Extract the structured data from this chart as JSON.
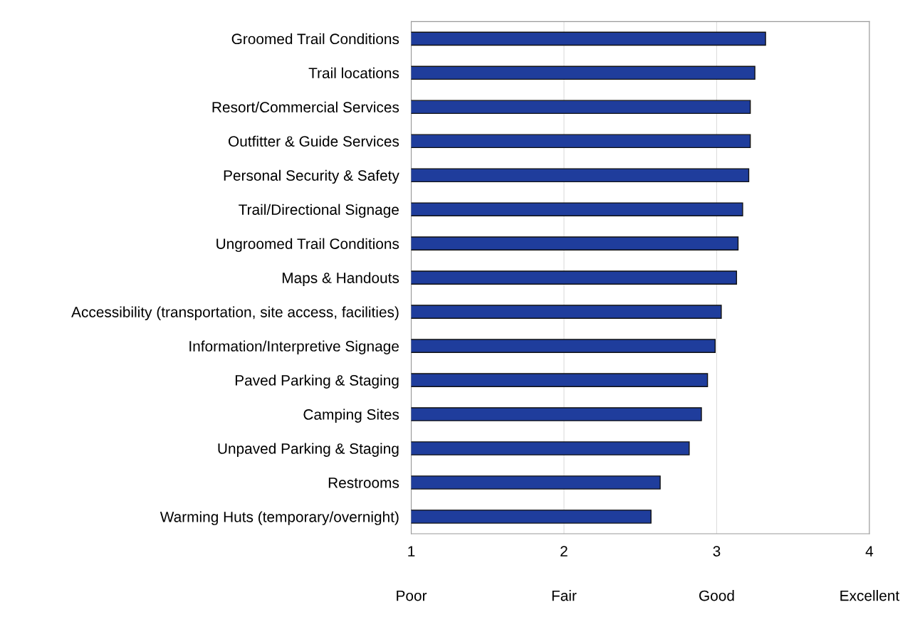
{
  "chart_data": {
    "type": "bar",
    "orientation": "horizontal",
    "categories": [
      "Groomed Trail Conditions",
      "Trail locations",
      "Resort/Commercial Services",
      "Outfitter & Guide Services",
      "Personal Security & Safety",
      "Trail/Directional Signage",
      "Ungroomed Trail Conditions",
      "Maps & Handouts",
      "Accessibility (transportation, site access, facilities)",
      "Information/Interpretive Signage",
      "Paved Parking & Staging",
      "Camping Sites",
      "Unpaved Parking & Staging",
      "Restrooms",
      "Warming Huts (temporary/overnight)"
    ],
    "values": [
      3.32,
      3.25,
      3.22,
      3.22,
      3.21,
      3.17,
      3.14,
      3.13,
      3.03,
      2.99,
      2.94,
      2.9,
      2.82,
      2.63,
      2.57
    ],
    "color": "#1f3d9c",
    "xlim": [
      1,
      4
    ],
    "xticks": [
      1,
      2,
      3,
      4
    ],
    "annotations": [
      "Poor",
      "Fair",
      "Good",
      "Excellent"
    ],
    "grid": "x"
  }
}
